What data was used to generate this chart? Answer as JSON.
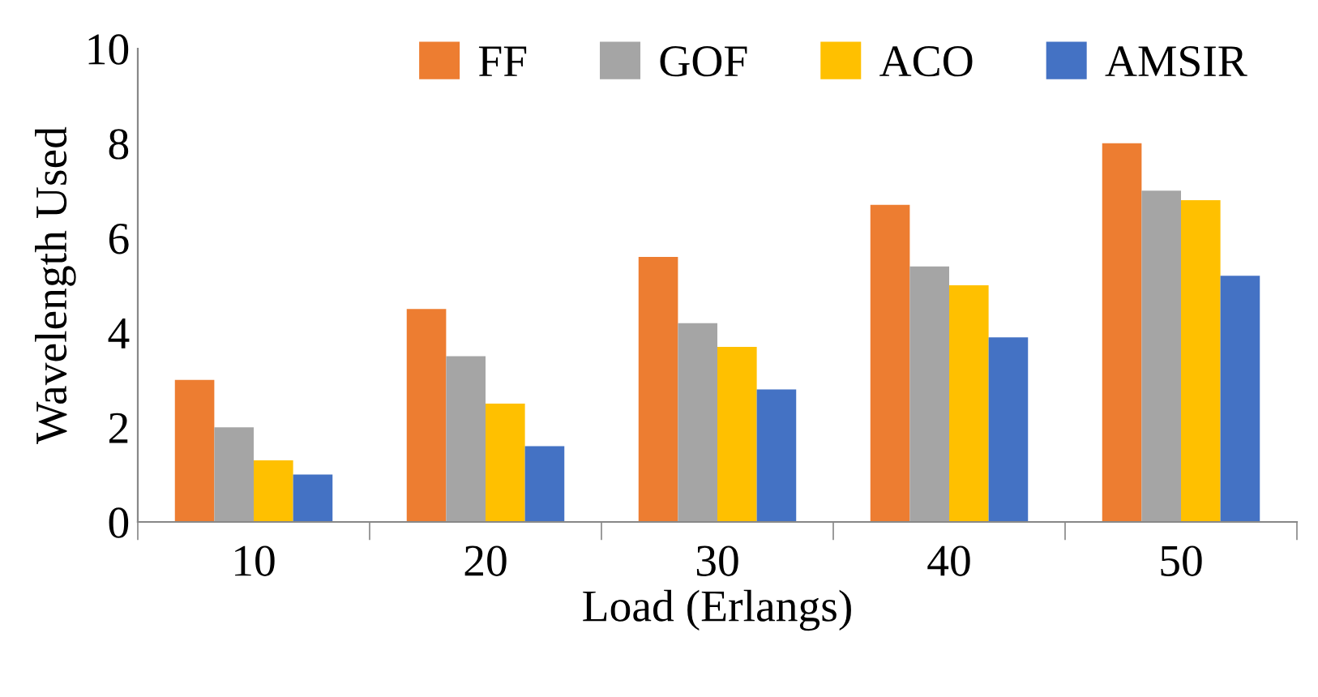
{
  "chart_data": {
    "type": "bar",
    "xlabel": "Load (Erlangs)",
    "ylabel": "Wavelength Used",
    "categories": [
      "10",
      "20",
      "30",
      "40",
      "50"
    ],
    "series": [
      {
        "name": "FF",
        "color": "#ed7d31",
        "values": [
          3.0,
          4.5,
          5.6,
          6.7,
          8.0
        ]
      },
      {
        "name": "GOF",
        "color": "#a5a5a5",
        "values": [
          2.0,
          3.5,
          4.2,
          5.4,
          7.0
        ]
      },
      {
        "name": "ACO",
        "color": "#ffc000",
        "values": [
          1.3,
          2.5,
          3.7,
          5.0,
          6.8
        ]
      },
      {
        "name": "AMSIR",
        "color": "#4472c4",
        "values": [
          1.0,
          1.6,
          2.8,
          3.9,
          5.2
        ]
      }
    ],
    "ylim": [
      0,
      10
    ],
    "yticks": [
      0,
      2,
      4,
      6,
      8,
      10
    ],
    "grid": false,
    "legend": "top"
  }
}
